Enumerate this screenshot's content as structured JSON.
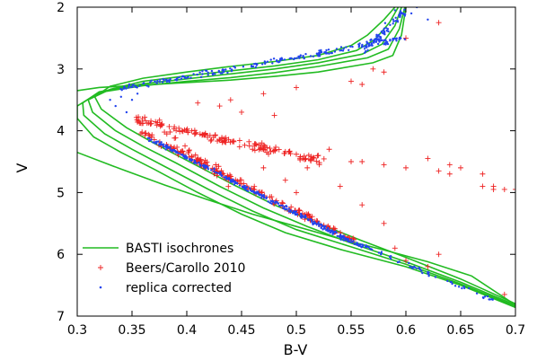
{
  "chart_data": {
    "type": "scatter",
    "xlabel": "B-V",
    "ylabel": "V",
    "xlim": [
      0.3,
      0.7
    ],
    "ylim": [
      7,
      2
    ],
    "y_inverted": true,
    "grid": false,
    "legend_position": "bottom-left",
    "x_ticks": [
      0.3,
      0.35,
      0.4,
      0.45,
      0.5,
      0.55,
      0.6,
      0.65,
      0.7
    ],
    "x_tick_labels": [
      "0.3",
      "0.35",
      "0.4",
      "0.45",
      "0.5",
      "0.55",
      "0.6",
      "0.65",
      "0.7"
    ],
    "y_ticks": [
      2,
      3,
      4,
      5,
      6,
      7
    ],
    "y_tick_labels": [
      "2",
      "3",
      "4",
      "5",
      "6",
      "7"
    ],
    "series": [
      {
        "name": "BASTI isochrones",
        "kind": "lines",
        "color": "#22bb22",
        "curves": [
          [
            [
              0.59,
              2.0
            ],
            [
              0.58,
              2.2
            ],
            [
              0.565,
              2.45
            ],
            [
              0.55,
              2.62
            ],
            [
              0.52,
              2.78
            ],
            [
              0.48,
              2.88
            ],
            [
              0.44,
              2.96
            ],
            [
              0.4,
              3.05
            ],
            [
              0.36,
              3.15
            ],
            [
              0.33,
              3.28
            ],
            [
              0.316,
              3.45
            ],
            [
              0.322,
              3.65
            ],
            [
              0.345,
              3.95
            ],
            [
              0.37,
              4.2
            ],
            [
              0.4,
              4.48
            ],
            [
              0.44,
              4.85
            ],
            [
              0.48,
              5.2
            ],
            [
              0.52,
              5.5
            ],
            [
              0.56,
              5.78
            ],
            [
              0.6,
              6.05
            ],
            [
              0.65,
              6.4
            ],
            [
              0.7,
              6.8
            ]
          ],
          [
            [
              0.593,
              2.0
            ],
            [
              0.585,
              2.25
            ],
            [
              0.572,
              2.52
            ],
            [
              0.555,
              2.7
            ],
            [
              0.52,
              2.85
            ],
            [
              0.48,
              2.95
            ],
            [
              0.44,
              3.03
            ],
            [
              0.4,
              3.11
            ],
            [
              0.36,
              3.2
            ],
            [
              0.33,
              3.33
            ],
            [
              0.31,
              3.5
            ],
            [
              0.314,
              3.7
            ],
            [
              0.335,
              4.0
            ],
            [
              0.36,
              4.25
            ],
            [
              0.39,
              4.52
            ],
            [
              0.43,
              4.9
            ],
            [
              0.47,
              5.25
            ],
            [
              0.51,
              5.55
            ],
            [
              0.55,
              5.82
            ],
            [
              0.6,
              6.12
            ],
            [
              0.65,
              6.45
            ],
            [
              0.7,
              6.82
            ]
          ],
          [
            [
              0.596,
              2.0
            ],
            [
              0.59,
              2.3
            ],
            [
              0.578,
              2.6
            ],
            [
              0.56,
              2.76
            ],
            [
              0.52,
              2.9
            ],
            [
              0.48,
              3.0
            ],
            [
              0.44,
              3.08
            ],
            [
              0.4,
              3.16
            ],
            [
              0.36,
              3.24
            ],
            [
              0.32,
              3.37
            ],
            [
              0.305,
              3.55
            ],
            [
              0.306,
              3.75
            ],
            [
              0.325,
              4.05
            ],
            [
              0.35,
              4.3
            ],
            [
              0.38,
              4.58
            ],
            [
              0.42,
              4.95
            ],
            [
              0.46,
              5.3
            ],
            [
              0.5,
              5.6
            ],
            [
              0.55,
              5.88
            ],
            [
              0.6,
              6.16
            ],
            [
              0.65,
              6.48
            ],
            [
              0.7,
              6.84
            ]
          ],
          [
            [
              0.599,
              2.0
            ],
            [
              0.594,
              2.35
            ],
            [
              0.584,
              2.68
            ],
            [
              0.565,
              2.82
            ],
            [
              0.52,
              2.96
            ],
            [
              0.48,
              3.06
            ],
            [
              0.44,
              3.14
            ],
            [
              0.4,
              3.2
            ],
            [
              0.36,
              3.27
            ],
            [
              0.32,
              3.38
            ],
            [
              0.3,
              3.6
            ],
            [
              0.3,
              3.8
            ],
            [
              0.315,
              4.1
            ],
            [
              0.34,
              4.35
            ],
            [
              0.37,
              4.62
            ],
            [
              0.41,
              5.0
            ],
            [
              0.45,
              5.35
            ],
            [
              0.49,
              5.65
            ],
            [
              0.54,
              5.92
            ],
            [
              0.6,
              6.2
            ],
            [
              0.65,
              6.5
            ],
            [
              0.7,
              6.86
            ]
          ],
          [
            [
              0.6,
              2.0
            ],
            [
              0.596,
              2.45
            ],
            [
              0.588,
              2.78
            ],
            [
              0.57,
              2.9
            ],
            [
              0.52,
              3.05
            ],
            [
              0.48,
              3.12
            ],
            [
              0.44,
              3.18
            ],
            [
              0.4,
              3.22
            ],
            [
              0.36,
              3.26
            ],
            [
              0.32,
              3.3
            ],
            [
              0.3,
              3.35
            ]
          ],
          [
            [
              0.3,
              4.35
            ],
            [
              0.34,
              4.62
            ],
            [
              0.38,
              4.88
            ],
            [
              0.42,
              5.12
            ],
            [
              0.46,
              5.35
            ],
            [
              0.5,
              5.55
            ],
            [
              0.54,
              5.75
            ],
            [
              0.58,
              5.93
            ],
            [
              0.62,
              6.12
            ],
            [
              0.66,
              6.35
            ],
            [
              0.7,
              6.82
            ]
          ]
        ]
      },
      {
        "name": "Beers/Carollo 2010",
        "kind": "points",
        "marker": "plus",
        "color": "#ee2222",
        "sequences": [
          {
            "x_start": 0.355,
            "x_end": 0.525,
            "y_start": 3.82,
            "y_end": 4.5,
            "count": 140,
            "jitter": 0.09
          },
          {
            "x_start": 0.36,
            "x_end": 0.555,
            "y_start": 4.05,
            "y_end": 5.8,
            "count": 170,
            "jitter": 0.07
          },
          {
            "x_start": 0.38,
            "x_end": 0.44,
            "y_start": 4.05,
            "y_end": 4.8,
            "count": 30,
            "jitter": 0.12
          }
        ],
        "points": [
          [
            0.44,
            3.5
          ],
          [
            0.47,
            3.4
          ],
          [
            0.5,
            3.3
          ],
          [
            0.55,
            3.2
          ],
          [
            0.57,
            3.0
          ],
          [
            0.58,
            3.05
          ],
          [
            0.6,
            2.5
          ],
          [
            0.63,
            2.25
          ],
          [
            0.56,
            3.25
          ],
          [
            0.5,
            4.38
          ],
          [
            0.52,
            4.4
          ],
          [
            0.55,
            4.5
          ],
          [
            0.58,
            4.55
          ],
          [
            0.6,
            4.6
          ],
          [
            0.62,
            4.45
          ],
          [
            0.63,
            4.65
          ],
          [
            0.64,
            4.55
          ],
          [
            0.65,
            4.6
          ],
          [
            0.67,
            4.7
          ],
          [
            0.68,
            4.9
          ],
          [
            0.69,
            4.95
          ],
          [
            0.67,
            4.9
          ],
          [
            0.68,
            4.95
          ],
          [
            0.7,
            4.95
          ],
          [
            0.64,
            4.7
          ],
          [
            0.56,
            4.5
          ],
          [
            0.53,
            4.3
          ],
          [
            0.51,
            4.6
          ],
          [
            0.54,
            4.9
          ],
          [
            0.56,
            5.2
          ],
          [
            0.58,
            5.5
          ],
          [
            0.59,
            5.9
          ],
          [
            0.6,
            6.1
          ],
          [
            0.62,
            6.2
          ],
          [
            0.63,
            6.0
          ],
          [
            0.69,
            6.65
          ],
          [
            0.41,
            3.55
          ],
          [
            0.43,
            3.6
          ],
          [
            0.45,
            3.7
          ],
          [
            0.48,
            3.75
          ],
          [
            0.46,
            4.3
          ],
          [
            0.47,
            4.6
          ],
          [
            0.49,
            4.8
          ],
          [
            0.5,
            5.0
          ]
        ]
      },
      {
        "name": "replica corrected",
        "kind": "points",
        "marker": "dot",
        "color": "#2244ee",
        "sequences": [
          {
            "x_start": 0.365,
            "x_end": 0.56,
            "y_start": 4.12,
            "y_end": 5.88,
            "count": 330,
            "jitter": 0.045
          },
          {
            "x_start": 0.34,
            "x_end": 0.6,
            "y_start": 3.32,
            "y_end": 2.5,
            "count": 210,
            "jitter": 0.07
          },
          {
            "x_start": 0.56,
            "x_end": 0.6,
            "y_start": 2.75,
            "y_end": 2.05,
            "count": 70,
            "jitter": 0.1
          },
          {
            "x_start": 0.56,
            "x_end": 0.68,
            "y_start": 5.85,
            "y_end": 6.75,
            "count": 55,
            "jitter": 0.04
          }
        ],
        "points": [
          [
            0.33,
            3.5
          ],
          [
            0.335,
            3.6
          ],
          [
            0.34,
            3.45
          ],
          [
            0.345,
            3.7
          ],
          [
            0.35,
            3.5
          ],
          [
            0.355,
            3.4
          ],
          [
            0.61,
            2.0
          ],
          [
            0.605,
            2.1
          ],
          [
            0.62,
            2.2
          ],
          [
            0.59,
            2.05
          ]
        ]
      }
    ]
  }
}
